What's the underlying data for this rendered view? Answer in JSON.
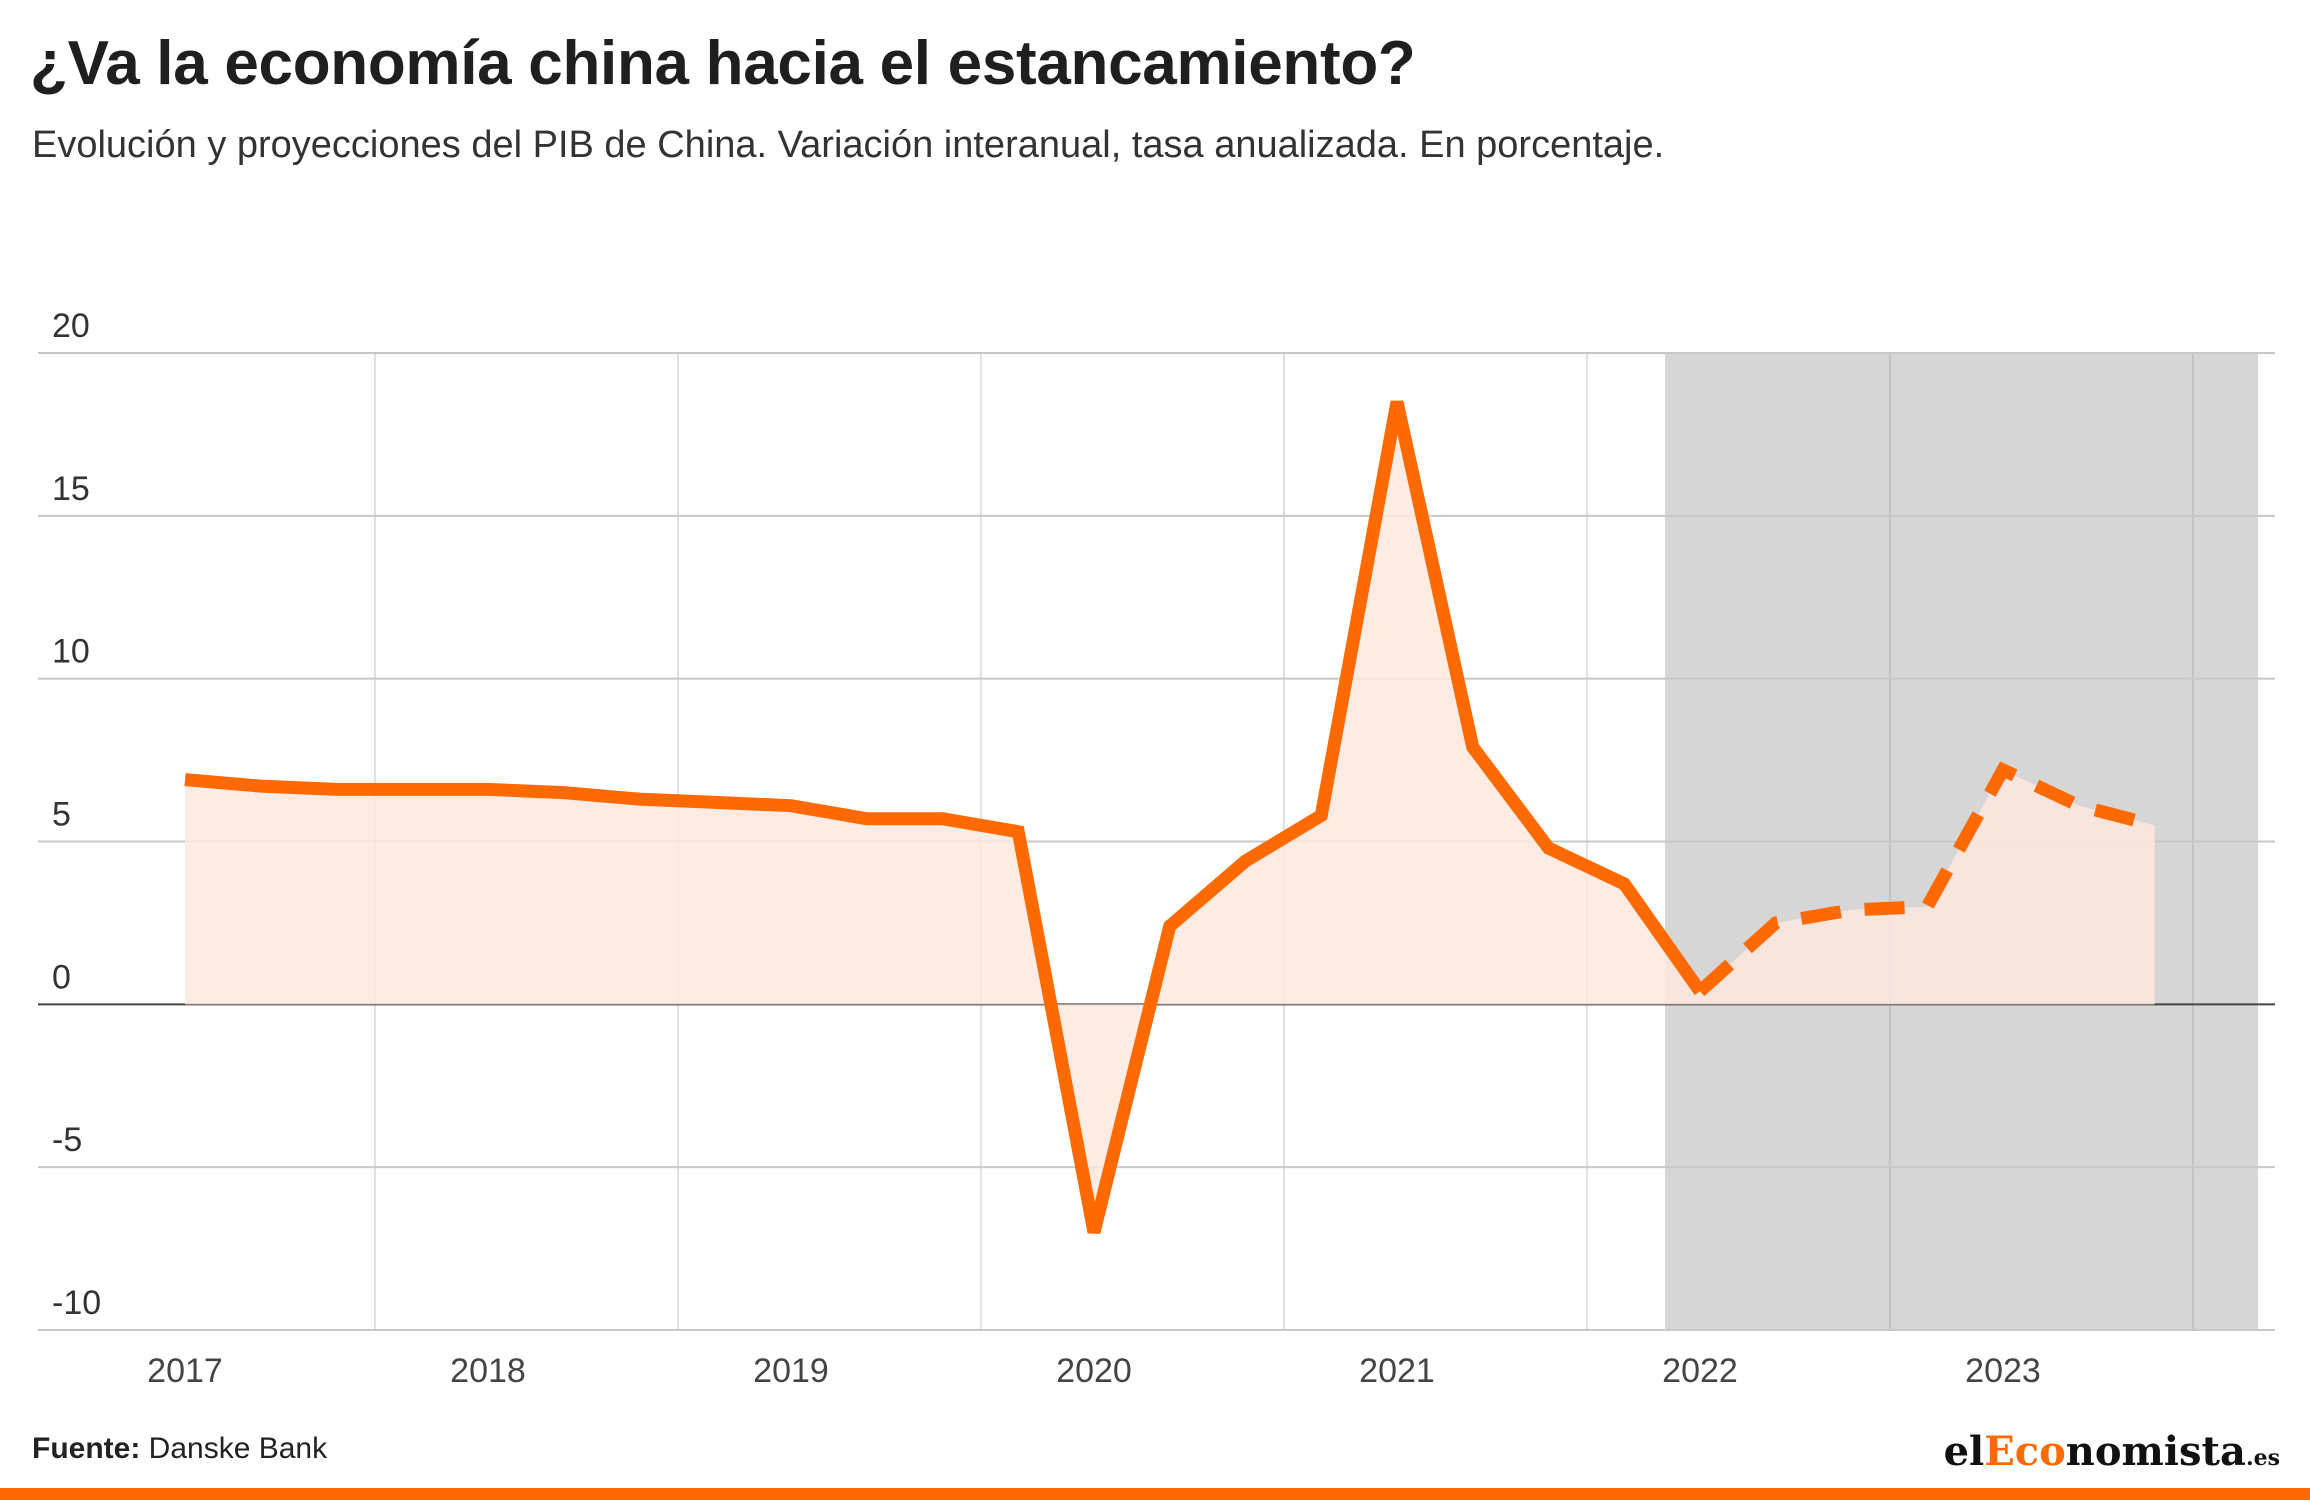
{
  "header": {
    "title": "¿Va la economía china hacia el estancamiento?",
    "subtitle": "Evolución y proyecciones del PIB de China. Variación interanual, tasa anualizada. En porcentaje."
  },
  "footer": {
    "source_label": "Fuente:",
    "source_value": "Danske Bank",
    "logo_prefix": "el",
    "logo_accent": "Eco",
    "logo_suffix": "nomista",
    "logo_domain": ".es"
  },
  "colors": {
    "line": "#ff6a00",
    "area": "#fde7df",
    "projection_band": "#d6d6d6",
    "grid": "#c8c8c8",
    "zero_line": "#444444",
    "year_divider": "#e0e0e0"
  },
  "chart_data": {
    "type": "line",
    "title": "¿Va la economía china hacia el estancamiento?",
    "ylim": [
      -10,
      20
    ],
    "yticks": [
      20,
      15,
      10,
      5,
      0,
      -5,
      -10
    ],
    "x_labels": [
      "2017",
      "2018",
      "2019",
      "2020",
      "2021",
      "2022",
      "2023"
    ],
    "grid": true,
    "projection_start": 2022.0,
    "series": [
      {
        "style": "solid",
        "x": [
          2017.0,
          2017.25,
          2017.5,
          2017.75,
          2018.0,
          2018.25,
          2018.5,
          2018.75,
          2019.0,
          2019.25,
          2019.5,
          2019.75,
          2020.0,
          2020.25,
          2020.5,
          2020.75,
          2021.0,
          2021.25,
          2021.5,
          2021.75,
          2022.0
        ],
        "values": [
          6.9,
          6.7,
          6.6,
          6.6,
          6.6,
          6.5,
          6.3,
          6.2,
          6.1,
          5.7,
          5.7,
          5.3,
          -7.0,
          2.4,
          4.4,
          5.8,
          18.5,
          7.9,
          4.8,
          3.7,
          0.4
        ]
      },
      {
        "style": "dashed",
        "x": [
          2022.0,
          2022.25,
          2022.5,
          2022.75,
          2023.0,
          2023.25,
          2023.5
        ],
        "values": [
          0.4,
          2.5,
          2.9,
          3.0,
          7.2,
          6.1,
          5.5
        ]
      }
    ]
  }
}
